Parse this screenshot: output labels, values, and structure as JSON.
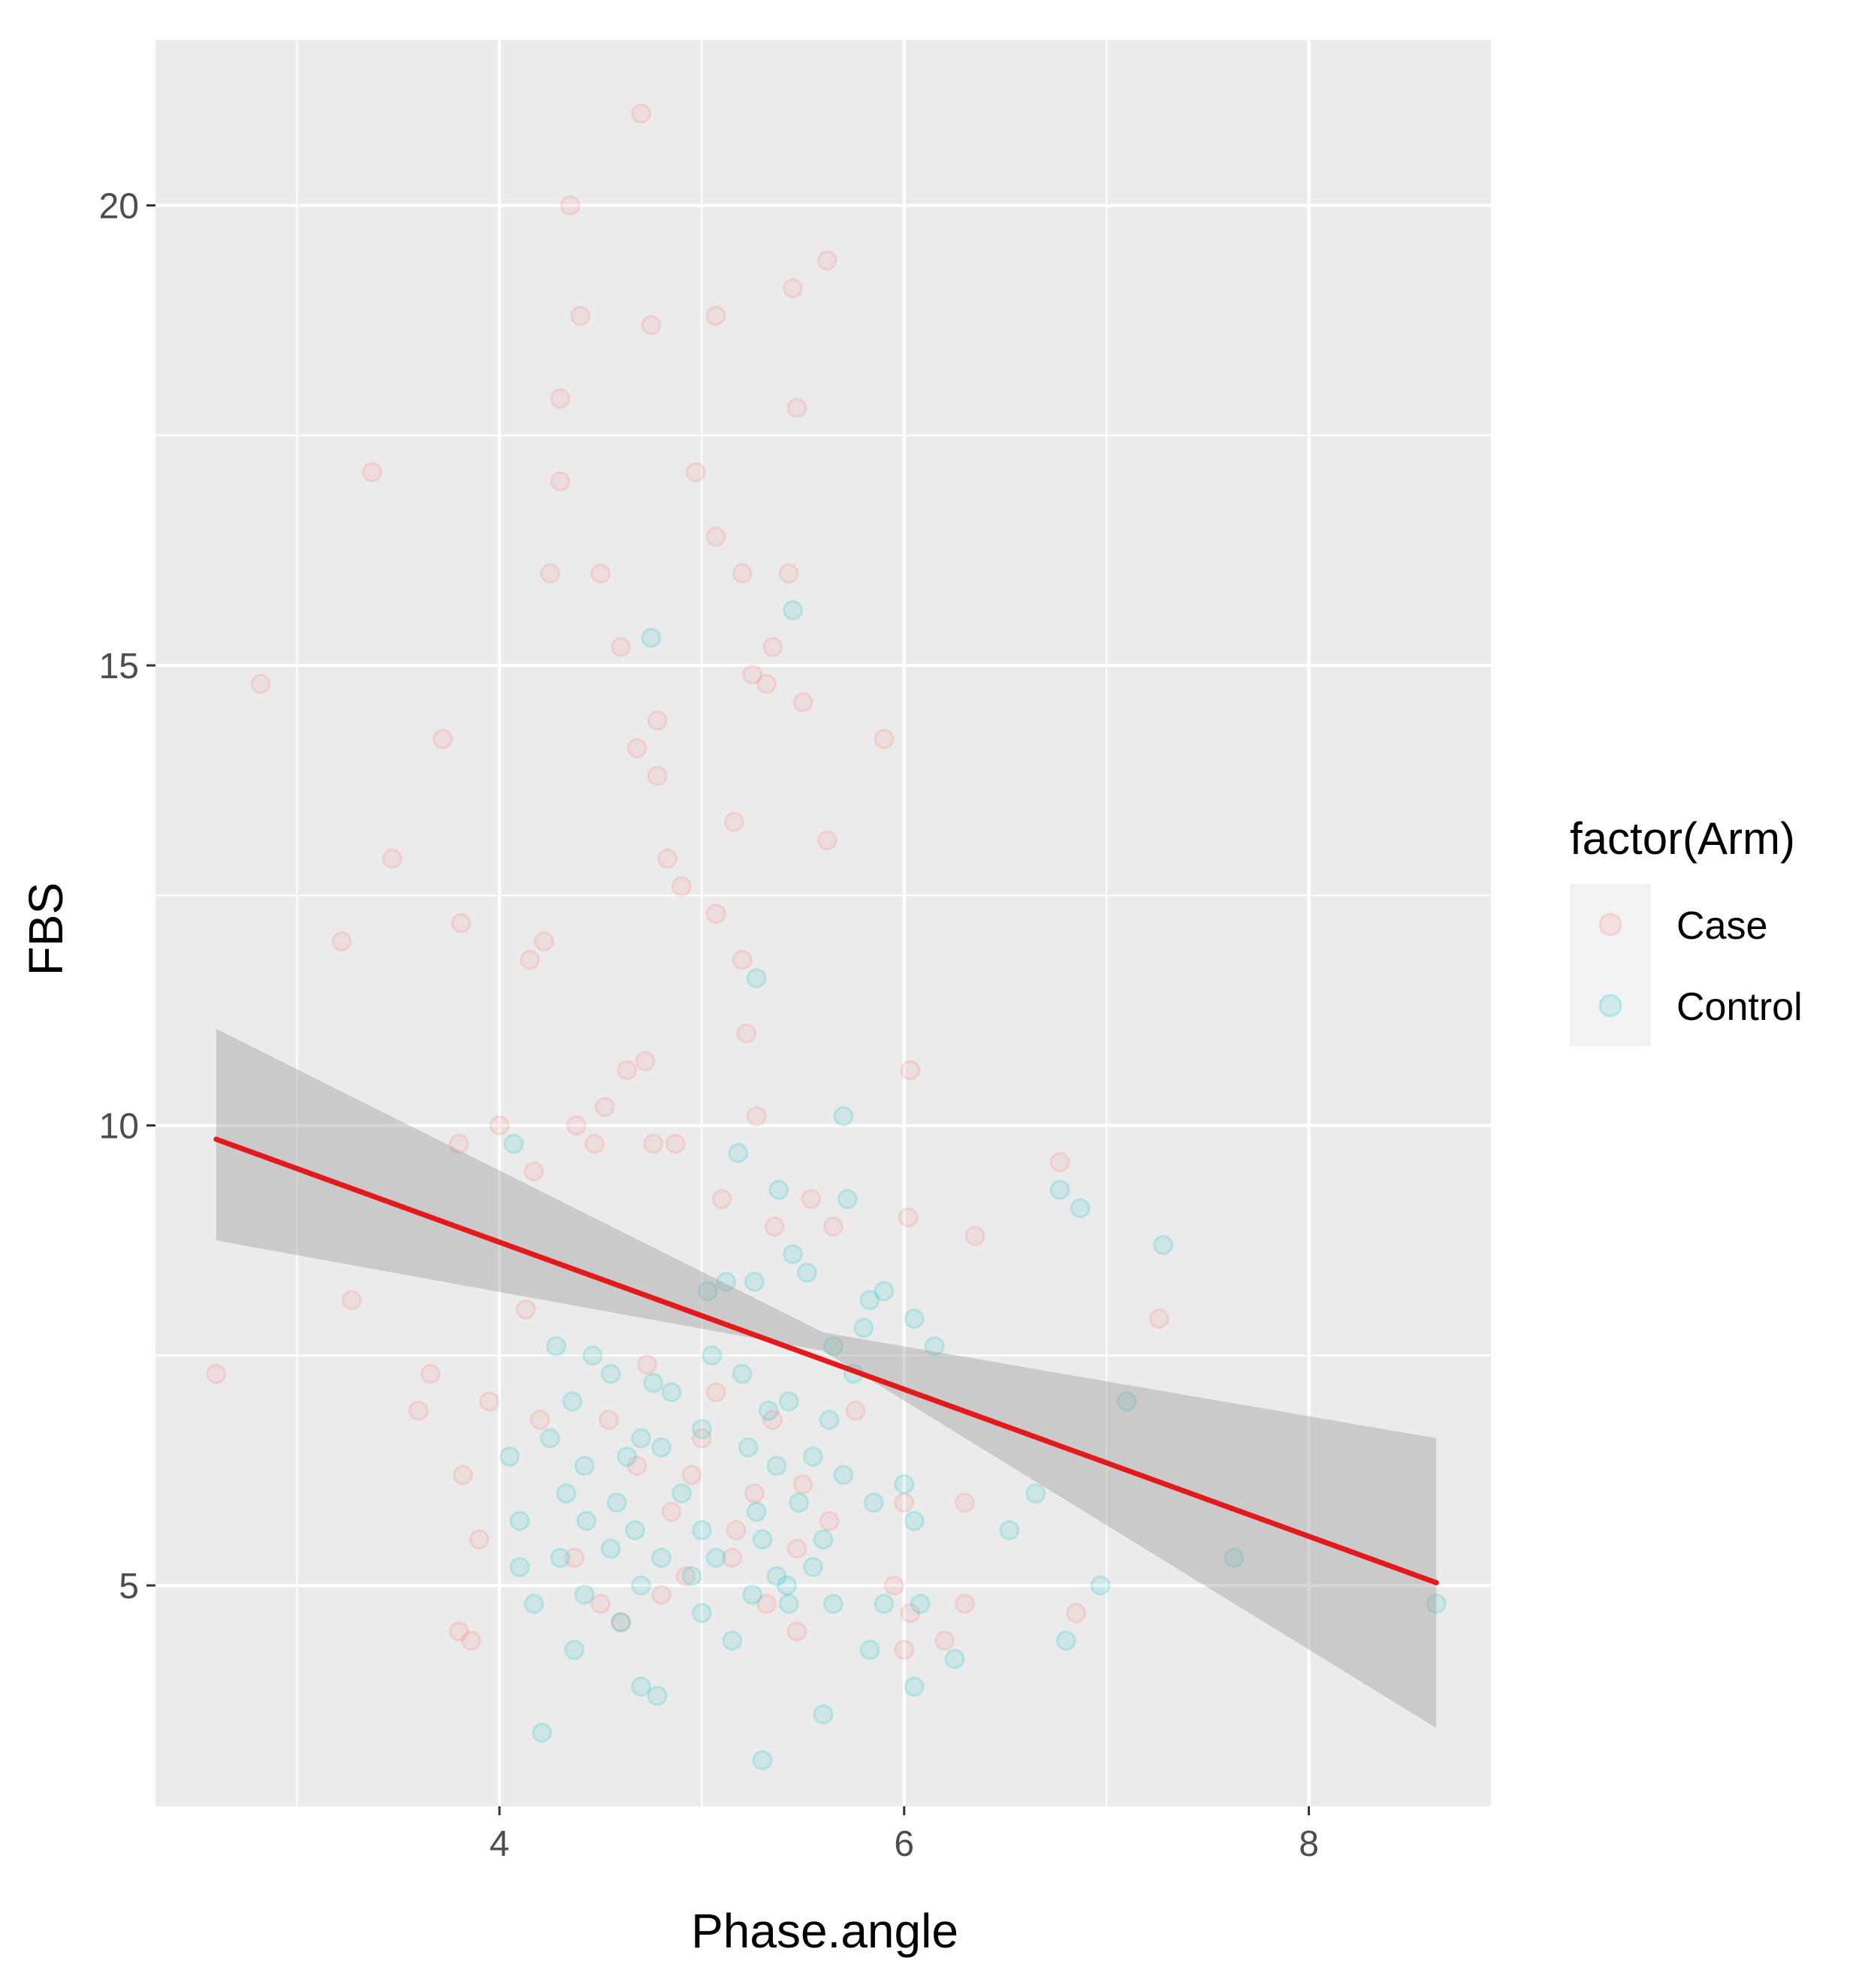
{
  "chart_data": {
    "type": "scatter",
    "xlabel": "Phase.angle",
    "ylabel": "FBS",
    "xlim": [
      2.3,
      8.9
    ],
    "ylim": [
      2.6,
      21.8
    ],
    "x_ticks": [
      4,
      6,
      8
    ],
    "y_ticks": [
      5,
      10,
      15,
      20
    ],
    "x_tick_labels": [
      "4",
      "6",
      "8"
    ],
    "y_tick_labels": [
      "5",
      "10",
      "15",
      "20"
    ],
    "grid": true,
    "legend": {
      "title": "factor(Arm)",
      "position": "right",
      "entries": [
        {
          "label": "Case",
          "color": "#F8766D"
        },
        {
          "label": "Control",
          "color": "#00BFC4"
        }
      ]
    },
    "series": [
      {
        "name": "Case",
        "color": "#F8766D",
        "alpha": 0.12,
        "points": [
          [
            4.7,
            21.0
          ],
          [
            4.35,
            20.0
          ],
          [
            5.62,
            19.4
          ],
          [
            5.45,
            19.1
          ],
          [
            4.4,
            18.8
          ],
          [
            4.75,
            18.7
          ],
          [
            5.07,
            18.8
          ],
          [
            4.3,
            17.9
          ],
          [
            5.47,
            17.8
          ],
          [
            3.37,
            17.1
          ],
          [
            4.3,
            17.0
          ],
          [
            4.97,
            17.1
          ],
          [
            5.07,
            16.4
          ],
          [
            4.25,
            16.0
          ],
          [
            4.5,
            16.0
          ],
          [
            5.2,
            16.0
          ],
          [
            5.43,
            16.0
          ],
          [
            4.6,
            15.2
          ],
          [
            5.35,
            15.2
          ],
          [
            2.82,
            14.8
          ],
          [
            5.25,
            14.9
          ],
          [
            5.32,
            14.8
          ],
          [
            5.5,
            14.6
          ],
          [
            3.72,
            14.2
          ],
          [
            4.78,
            14.4
          ],
          [
            4.68,
            14.1
          ],
          [
            5.9,
            14.2
          ],
          [
            4.78,
            13.8
          ],
          [
            5.16,
            13.3
          ],
          [
            5.62,
            13.1
          ],
          [
            3.47,
            12.9
          ],
          [
            4.83,
            12.9
          ],
          [
            4.9,
            12.6
          ],
          [
            3.81,
            12.2
          ],
          [
            5.07,
            12.3
          ],
          [
            3.22,
            12.0
          ],
          [
            4.22,
            12.0
          ],
          [
            4.15,
            11.8
          ],
          [
            5.2,
            11.8
          ],
          [
            5.22,
            11.0
          ],
          [
            4.63,
            10.6
          ],
          [
            4.72,
            10.7
          ],
          [
            6.03,
            10.6
          ],
          [
            5.27,
            10.1
          ],
          [
            4.52,
            10.2
          ],
          [
            4.0,
            10.0
          ],
          [
            4.38,
            10.0
          ],
          [
            3.8,
            9.8
          ],
          [
            4.47,
            9.8
          ],
          [
            4.76,
            9.8
          ],
          [
            4.87,
            9.8
          ],
          [
            4.17,
            9.5
          ],
          [
            5.1,
            9.2
          ],
          [
            5.54,
            9.2
          ],
          [
            6.02,
            9.0
          ],
          [
            5.36,
            8.9
          ],
          [
            5.65,
            8.9
          ],
          [
            6.35,
            8.8
          ],
          [
            3.27,
            8.1
          ],
          [
            4.13,
            8.0
          ],
          [
            6.77,
            9.6
          ],
          [
            7.26,
            7.9
          ],
          [
            2.6,
            7.3
          ],
          [
            3.66,
            7.3
          ],
          [
            3.6,
            6.9
          ],
          [
            3.95,
            7.0
          ],
          [
            4.73,
            7.4
          ],
          [
            5.07,
            7.1
          ],
          [
            4.2,
            6.8
          ],
          [
            4.54,
            6.8
          ],
          [
            5.35,
            6.8
          ],
          [
            5.0,
            6.6
          ],
          [
            5.76,
            6.9
          ],
          [
            3.82,
            6.2
          ],
          [
            4.68,
            6.3
          ],
          [
            4.95,
            6.2
          ],
          [
            5.26,
            6.0
          ],
          [
            5.5,
            6.1
          ],
          [
            6.0,
            5.9
          ],
          [
            4.85,
            5.8
          ],
          [
            5.17,
            5.6
          ],
          [
            5.63,
            5.7
          ],
          [
            6.3,
            5.9
          ],
          [
            3.9,
            5.5
          ],
          [
            4.37,
            5.3
          ],
          [
            4.92,
            5.1
          ],
          [
            5.15,
            5.3
          ],
          [
            5.47,
            5.4
          ],
          [
            5.95,
            5.0
          ],
          [
            4.5,
            4.8
          ],
          [
            4.8,
            4.9
          ],
          [
            5.32,
            4.8
          ],
          [
            6.03,
            4.7
          ],
          [
            6.3,
            4.8
          ],
          [
            6.85,
            4.7
          ],
          [
            5.47,
            4.5
          ],
          [
            6.2,
            4.4
          ],
          [
            3.8,
            4.5
          ],
          [
            3.86,
            4.4
          ],
          [
            6.0,
            4.3
          ],
          [
            4.6,
            4.6
          ]
        ]
      },
      {
        "name": "Control",
        "color": "#00BFC4",
        "alpha": 0.12,
        "points": [
          [
            5.45,
            15.6
          ],
          [
            4.75,
            15.3
          ],
          [
            5.27,
            11.6
          ],
          [
            5.7,
            10.1
          ],
          [
            4.07,
            9.8
          ],
          [
            5.18,
            9.7
          ],
          [
            5.38,
            9.3
          ],
          [
            6.77,
            9.3
          ],
          [
            6.87,
            9.1
          ],
          [
            5.72,
            9.2
          ],
          [
            7.28,
            8.7
          ],
          [
            5.45,
            8.6
          ],
          [
            5.52,
            8.4
          ],
          [
            5.12,
            8.3
          ],
          [
            5.26,
            8.3
          ],
          [
            5.03,
            8.2
          ],
          [
            5.9,
            8.2
          ],
          [
            5.83,
            8.1
          ],
          [
            6.05,
            7.9
          ],
          [
            5.8,
            7.8
          ],
          [
            6.15,
            7.6
          ],
          [
            4.28,
            7.6
          ],
          [
            4.46,
            7.5
          ],
          [
            5.05,
            7.5
          ],
          [
            5.65,
            7.6
          ],
          [
            4.55,
            7.3
          ],
          [
            4.76,
            7.2
          ],
          [
            5.2,
            7.3
          ],
          [
            5.75,
            7.3
          ],
          [
            4.36,
            7.0
          ],
          [
            4.85,
            7.1
          ],
          [
            5.43,
            7.0
          ],
          [
            5.33,
            6.9
          ],
          [
            5.63,
            6.8
          ],
          [
            4.7,
            6.6
          ],
          [
            5.0,
            6.7
          ],
          [
            4.05,
            6.4
          ],
          [
            4.25,
            6.6
          ],
          [
            4.42,
            6.3
          ],
          [
            4.63,
            6.4
          ],
          [
            4.8,
            6.5
          ],
          [
            5.23,
            6.5
          ],
          [
            5.37,
            6.3
          ],
          [
            5.7,
            6.2
          ],
          [
            6.0,
            6.1
          ],
          [
            4.33,
            6.0
          ],
          [
            4.58,
            5.9
          ],
          [
            4.9,
            6.0
          ],
          [
            5.27,
            5.8
          ],
          [
            5.48,
            5.9
          ],
          [
            5.85,
            5.9
          ],
          [
            4.1,
            5.7
          ],
          [
            4.43,
            5.7
          ],
          [
            4.67,
            5.6
          ],
          [
            5.0,
            5.6
          ],
          [
            5.3,
            5.5
          ],
          [
            5.6,
            5.5
          ],
          [
            6.05,
            5.7
          ],
          [
            4.1,
            5.2
          ],
          [
            4.3,
            5.3
          ],
          [
            4.55,
            5.4
          ],
          [
            4.8,
            5.3
          ],
          [
            5.07,
            5.3
          ],
          [
            5.37,
            5.1
          ],
          [
            5.55,
            5.2
          ],
          [
            4.17,
            4.8
          ],
          [
            4.42,
            4.9
          ],
          [
            4.7,
            5.0
          ],
          [
            4.95,
            5.1
          ],
          [
            5.25,
            4.9
          ],
          [
            5.42,
            5.0
          ],
          [
            5.65,
            4.8
          ],
          [
            5.9,
            4.8
          ],
          [
            6.08,
            4.8
          ],
          [
            4.6,
            4.6
          ],
          [
            5.0,
            4.7
          ],
          [
            5.43,
            4.8
          ],
          [
            4.37,
            4.3
          ],
          [
            5.15,
            4.4
          ],
          [
            5.83,
            4.3
          ],
          [
            6.25,
            4.2
          ],
          [
            4.7,
            3.9
          ],
          [
            4.78,
            3.8
          ],
          [
            6.05,
            3.9
          ],
          [
            5.6,
            3.6
          ],
          [
            4.21,
            3.4
          ],
          [
            5.3,
            3.1
          ],
          [
            6.8,
            4.4
          ],
          [
            6.97,
            5.0
          ],
          [
            7.63,
            5.3
          ],
          [
            8.63,
            4.8
          ],
          [
            7.1,
            7.0
          ],
          [
            6.65,
            6.0
          ],
          [
            6.52,
            5.6
          ],
          [
            5.55,
            6.4
          ]
        ]
      }
    ],
    "fit_line": {
      "method": "lm",
      "color": "#E31A1C",
      "x": [
        2.6,
        8.63
      ],
      "y": [
        9.85,
        5.03
      ],
      "ci": {
        "fill": "#999999",
        "x": [
          2.6,
          5.6,
          8.63
        ],
        "lower": [
          8.75,
          7.55,
          3.45
        ],
        "upper": [
          11.05,
          7.75,
          6.6
        ]
      }
    }
  }
}
